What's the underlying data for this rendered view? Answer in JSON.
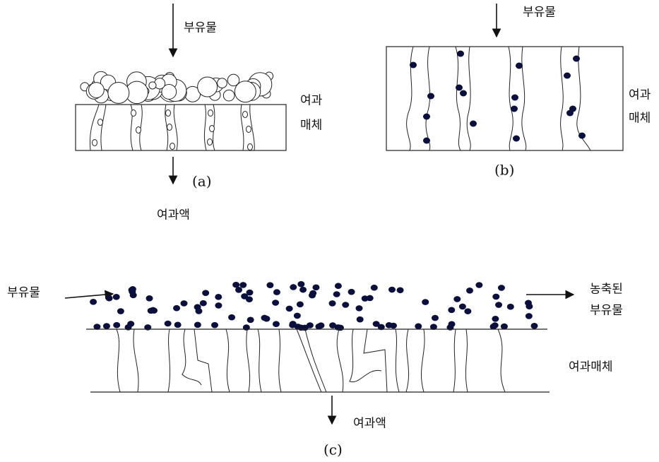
{
  "panels": [
    {
      "label": "(a)",
      "feed": "부유물",
      "medium": [
        "여과",
        "매체"
      ],
      "filtrate": "여과액"
    },
    {
      "label": "(b)",
      "feed": "부유물",
      "medium": [
        "여과",
        "매체"
      ]
    },
    {
      "label": "(c)",
      "feed": "부유물",
      "concentrate": [
        "농축된",
        "부유물"
      ],
      "medium": "여과매체",
      "filtrate": "여과액"
    }
  ]
}
